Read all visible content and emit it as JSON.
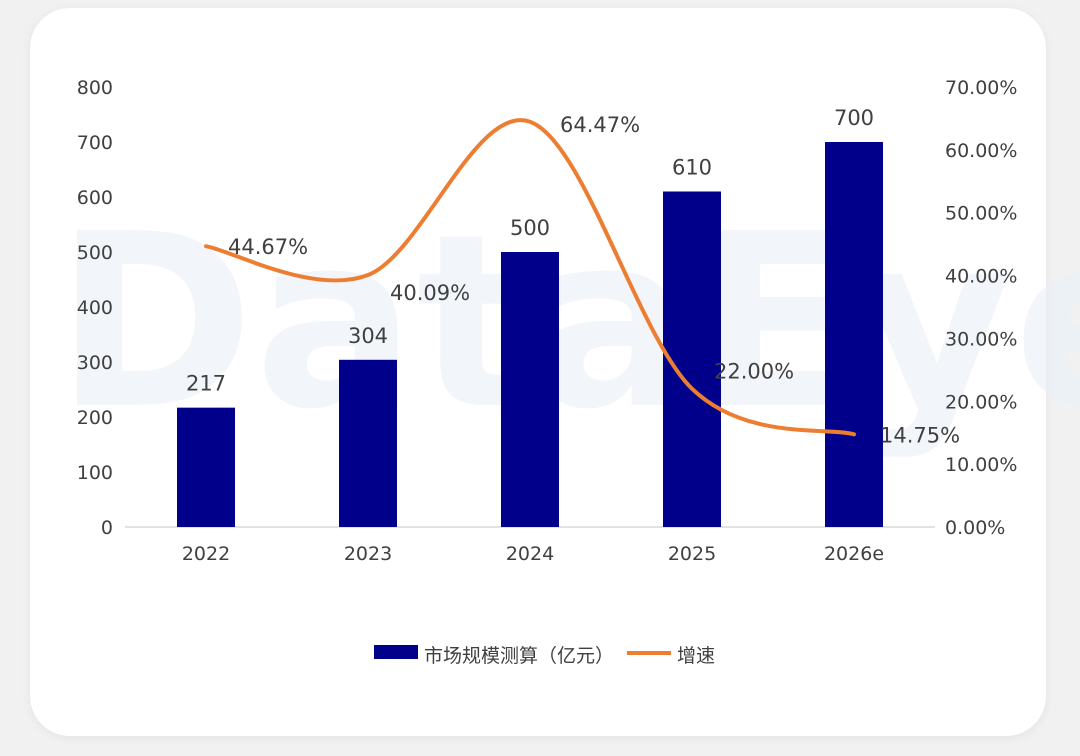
{
  "chart_data": {
    "type": "bar",
    "categories": [
      "2022",
      "2023",
      "2024",
      "2025",
      "2026e"
    ],
    "series": [
      {
        "name": "市场规模测算（亿元）",
        "kind": "bar",
        "axis": "left",
        "values": [
          217,
          304,
          500,
          610,
          700
        ],
        "labels": [
          "217",
          "304",
          "500",
          "610",
          "700"
        ]
      },
      {
        "name": "增速",
        "kind": "line",
        "axis": "right",
        "values": [
          44.67,
          40.09,
          64.47,
          22.0,
          14.75
        ],
        "labels": [
          "44.67%",
          "40.09%",
          "64.47%",
          "22.00%",
          "14.75%"
        ]
      }
    ],
    "left_axis": {
      "ylim": [
        0,
        800
      ],
      "ticks": [
        "0",
        "100",
        "200",
        "300",
        "400",
        "500",
        "600",
        "700",
        "800"
      ]
    },
    "right_axis": {
      "ylim": [
        0,
        70
      ],
      "ticks": [
        "0.00%",
        "10.00%",
        "20.00%",
        "30.00%",
        "40.00%",
        "50.00%",
        "60.00%",
        "70.00%"
      ]
    },
    "legend_position": "bottom-center",
    "grid": false,
    "watermark": "DataEye"
  },
  "colors": {
    "bar": "#00008b",
    "line": "#ed7d31",
    "axis": "#d9d9d9",
    "text": "#404040"
  }
}
